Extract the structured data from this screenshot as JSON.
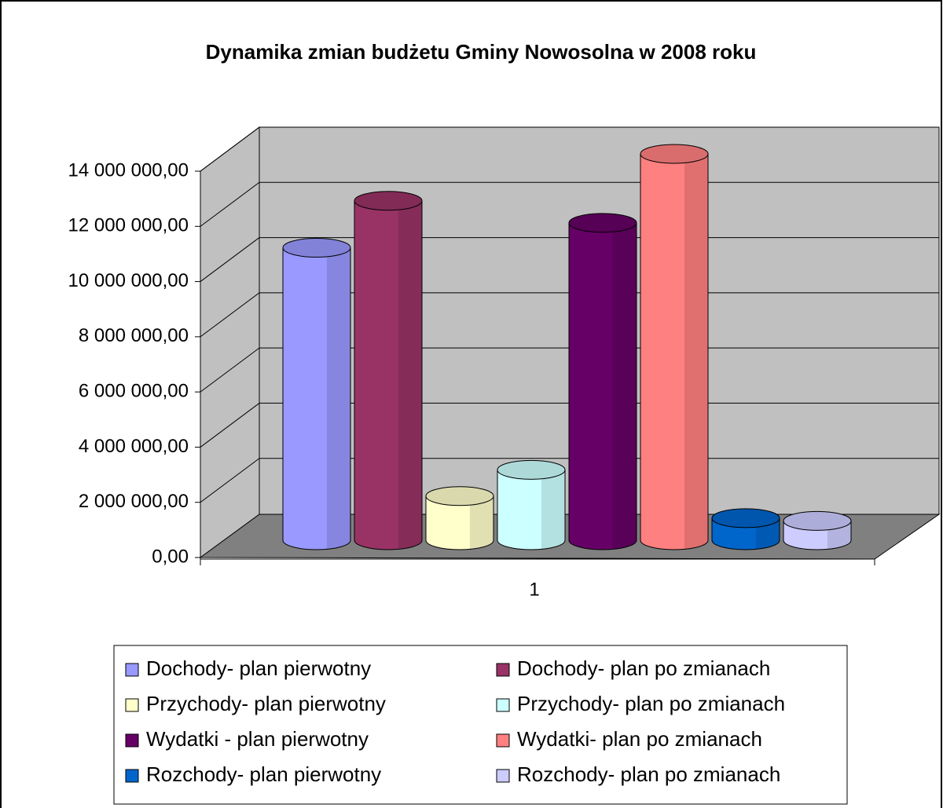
{
  "chart_data": {
    "type": "cylinder3d",
    "title": "Dynamika zmian budżetu Gminy Nowosolna w 2008 roku",
    "categories": [
      "1"
    ],
    "series": [
      {
        "name": "Dochody- plan pierwotny",
        "color": "#9999ff",
        "values": [
          10600000
        ]
      },
      {
        "name": "Dochody- plan po zmianach",
        "color": "#993366",
        "values": [
          12300000
        ]
      },
      {
        "name": "Przychody- plan pierwotny",
        "color": "#ffffcc",
        "values": [
          1600000
        ]
      },
      {
        "name": "Przychody- plan po zmianach",
        "color": "#ccffff",
        "values": [
          2550000
        ]
      },
      {
        "name": "Wydatki - plan pierwotny",
        "color": "#660066",
        "values": [
          11500000
        ]
      },
      {
        "name": "Wydatki- plan po zmianach",
        "color": "#ff8080",
        "values": [
          14000000
        ]
      },
      {
        "name": "Rozchody- plan pierwotny",
        "color": "#0066cc",
        "values": [
          800000
        ]
      },
      {
        "name": "Rozchody- plan po zmianach",
        "color": "#ccccff",
        "values": [
          700000
        ]
      }
    ],
    "ylim": [
      0,
      14000000
    ],
    "yticks": [
      {
        "value": 0,
        "label": "0,00"
      },
      {
        "value": 2000000,
        "label": "2 000 000,00"
      },
      {
        "value": 4000000,
        "label": "4 000 000,00"
      },
      {
        "value": 6000000,
        "label": "6 000 000,00"
      },
      {
        "value": 8000000,
        "label": "8 000 000,00"
      },
      {
        "value": 10000000,
        "label": "10 000 000,00"
      },
      {
        "value": 12000000,
        "label": "12 000 000,00"
      },
      {
        "value": 14000000,
        "label": "14 000 000,00"
      }
    ],
    "grid": true,
    "legend": "bottom"
  }
}
